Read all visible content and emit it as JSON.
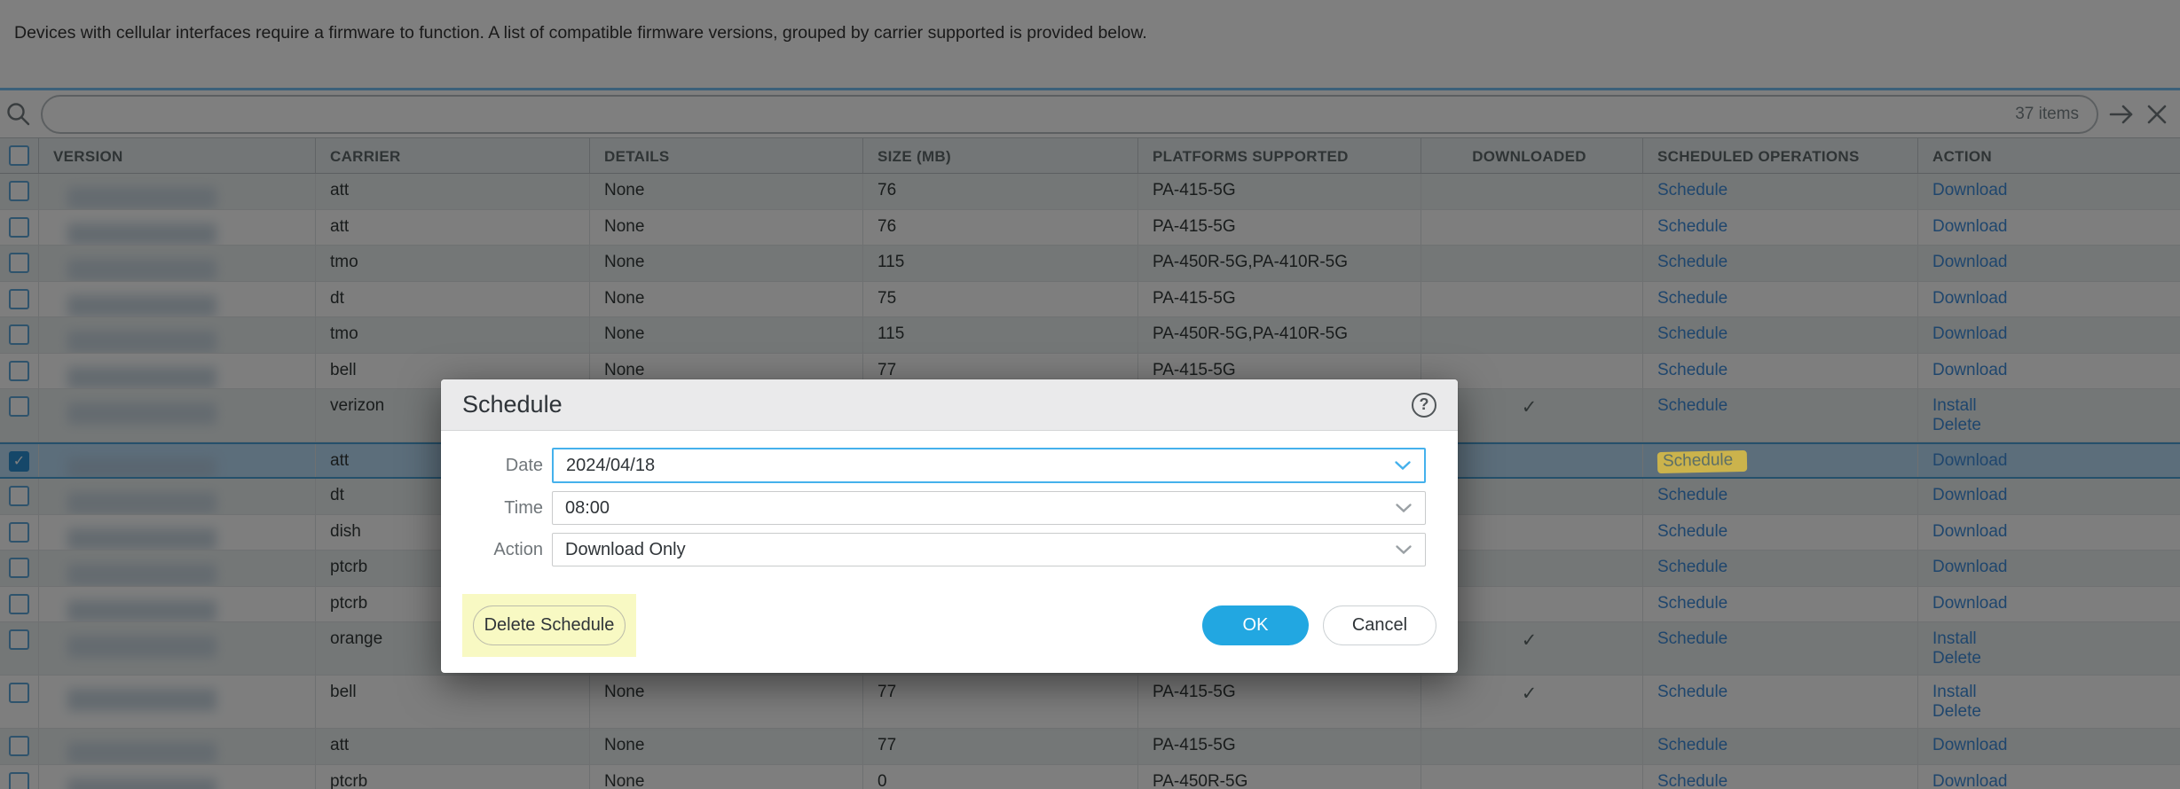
{
  "description": "Devices with cellular interfaces require a firmware to function. A list of compatible firmware versions, grouped by carrier supported is provided below.",
  "search": {
    "items_count": "37 items"
  },
  "icons": {
    "check_glyph": "✓",
    "help_glyph": "?",
    "checkbox_check_glyph": "✓"
  },
  "table": {
    "columns": [
      "VERSION",
      "CARRIER",
      "DETAILS",
      "SIZE (MB)",
      "PLATFORMS SUPPORTED",
      "DOWNLOADED",
      "SCHEDULED OPERATIONS",
      "ACTION"
    ],
    "rows": [
      {
        "carrier": "att",
        "details": "None",
        "size": "76",
        "platforms": "PA-415-5G",
        "downloaded": false,
        "scheduled": "Schedule",
        "actions": [
          "Download"
        ],
        "selected": false,
        "tall": false,
        "highlighted_schedule": false
      },
      {
        "carrier": "att",
        "details": "None",
        "size": "76",
        "platforms": "PA-415-5G",
        "downloaded": false,
        "scheduled": "Schedule",
        "actions": [
          "Download"
        ],
        "selected": false,
        "tall": false,
        "highlighted_schedule": false
      },
      {
        "carrier": "tmo",
        "details": "None",
        "size": "115",
        "platforms": "PA-450R-5G,PA-410R-5G",
        "downloaded": false,
        "scheduled": "Schedule",
        "actions": [
          "Download"
        ],
        "selected": false,
        "tall": false,
        "highlighted_schedule": false
      },
      {
        "carrier": "dt",
        "details": "None",
        "size": "75",
        "platforms": "PA-415-5G",
        "downloaded": false,
        "scheduled": "Schedule",
        "actions": [
          "Download"
        ],
        "selected": false,
        "tall": false,
        "highlighted_schedule": false
      },
      {
        "carrier": "tmo",
        "details": "None",
        "size": "115",
        "platforms": "PA-450R-5G,PA-410R-5G",
        "downloaded": false,
        "scheduled": "Schedule",
        "actions": [
          "Download"
        ],
        "selected": false,
        "tall": false,
        "highlighted_schedule": false
      },
      {
        "carrier": "bell",
        "details": "None",
        "size": "77",
        "platforms": "PA-415-5G",
        "downloaded": false,
        "scheduled": "Schedule",
        "actions": [
          "Download"
        ],
        "selected": false,
        "tall": false,
        "highlighted_schedule": false
      },
      {
        "carrier": "verizon",
        "details": "",
        "size": "",
        "platforms": "",
        "downloaded": true,
        "scheduled": "Schedule",
        "actions": [
          "Install",
          "Delete"
        ],
        "selected": false,
        "tall": true,
        "highlighted_schedule": false
      },
      {
        "carrier": "att",
        "details": "",
        "size": "",
        "platforms": "",
        "downloaded": false,
        "scheduled": "Schedule",
        "actions": [
          "Download"
        ],
        "selected": true,
        "tall": false,
        "highlighted_schedule": true
      },
      {
        "carrier": "dt",
        "details": "",
        "size": "",
        "platforms": "",
        "downloaded": false,
        "scheduled": "Schedule",
        "actions": [
          "Download"
        ],
        "selected": false,
        "tall": false,
        "highlighted_schedule": false
      },
      {
        "carrier": "dish",
        "details": "",
        "size": "",
        "platforms": "",
        "downloaded": false,
        "scheduled": "Schedule",
        "actions": [
          "Download"
        ],
        "selected": false,
        "tall": false,
        "highlighted_schedule": false
      },
      {
        "carrier": "ptcrb",
        "details": "",
        "size": "",
        "platforms": "",
        "downloaded": false,
        "scheduled": "Schedule",
        "actions": [
          "Download"
        ],
        "selected": false,
        "tall": false,
        "highlighted_schedule": false
      },
      {
        "carrier": "ptcrb",
        "details": "",
        "size": "",
        "platforms": "",
        "downloaded": false,
        "scheduled": "Schedule",
        "actions": [
          "Download"
        ],
        "selected": false,
        "tall": false,
        "highlighted_schedule": false
      },
      {
        "carrier": "orange",
        "details": "",
        "size": "",
        "platforms": "",
        "downloaded": true,
        "scheduled": "Schedule",
        "actions": [
          "Install",
          "Delete"
        ],
        "selected": false,
        "tall": true,
        "highlighted_schedule": false
      },
      {
        "carrier": "bell",
        "details": "None",
        "size": "77",
        "platforms": "PA-415-5G",
        "downloaded": true,
        "scheduled": "Schedule",
        "actions": [
          "Install",
          "Delete"
        ],
        "selected": false,
        "tall": true,
        "highlighted_schedule": false
      },
      {
        "carrier": "att",
        "details": "None",
        "size": "77",
        "platforms": "PA-415-5G",
        "downloaded": false,
        "scheduled": "Schedule",
        "actions": [
          "Download"
        ],
        "selected": false,
        "tall": false,
        "highlighted_schedule": false
      },
      {
        "carrier": "ptcrb",
        "details": "None",
        "size": "0",
        "platforms": "PA-450R-5G",
        "downloaded": false,
        "scheduled": "Schedule",
        "actions": [
          "Download"
        ],
        "selected": false,
        "tall": false,
        "highlighted_schedule": false
      }
    ]
  },
  "modal": {
    "title": "Schedule",
    "fields": [
      {
        "label": "Date",
        "value": "2024/04/18"
      },
      {
        "label": "Time",
        "value": "08:00"
      },
      {
        "label": "Action",
        "value": "Download Only"
      }
    ],
    "delete_button": "Delete Schedule",
    "ok_button": "OK",
    "cancel_button": "Cancel"
  },
  "colors": {
    "accent_blue": "#22a7e1",
    "link_blue": "#3f8cda",
    "selected_row_blue": "#b9dcf6",
    "annotation_highlight_yellow": "#f8f9c3",
    "annotation_marker_yellow": "#cbb34c",
    "top_rule_blue": "#77c1f2"
  }
}
